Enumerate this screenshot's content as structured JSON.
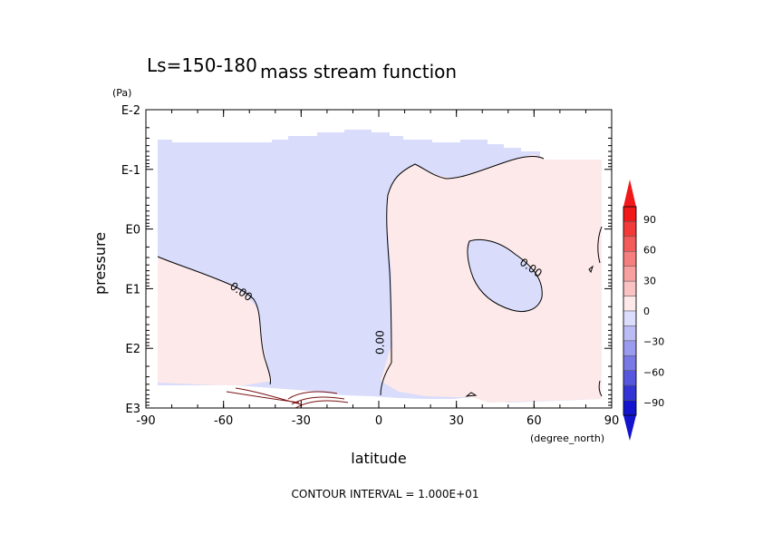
{
  "chart_data": {
    "type": "heatmap",
    "title": "mass stream function",
    "season_label": "Ls=150-180",
    "xlabel": "latitude",
    "x_unit": "(degree_north)",
    "ylabel": "pressure",
    "y_unit": "(Pa)",
    "x_ticks": [
      {
        "value": -90,
        "label": "-90"
      },
      {
        "value": -60,
        "label": "-60"
      },
      {
        "value": -30,
        "label": "-30"
      },
      {
        "value": 0,
        "label": "0"
      },
      {
        "value": 30,
        "label": "30"
      },
      {
        "value": 60,
        "label": "60"
      },
      {
        "value": 90,
        "label": "90"
      }
    ],
    "y_ticks": [
      {
        "exp": -2,
        "label": "E-2"
      },
      {
        "exp": -1,
        "label": "E-1"
      },
      {
        "exp": 0,
        "label": "E0"
      },
      {
        "exp": 1,
        "label": "E1"
      },
      {
        "exp": 2,
        "label": "E2"
      },
      {
        "exp": 3,
        "label": "E3"
      }
    ],
    "xlim": [
      -90,
      90
    ],
    "ylim_log10": [
      -2,
      3
    ],
    "y_scale": "log",
    "y_inverted": true,
    "contour_labels": [
      {
        "text": "0.00",
        "lat": -54,
        "log10p": 1.1
      },
      {
        "text": "0.00",
        "lat": 2,
        "log10p": 1.9
      },
      {
        "text": "0.00",
        "lat": 58,
        "log10p": 0.7
      }
    ],
    "colorbar": {
      "tick_values": [
        90,
        60,
        30,
        0,
        -30,
        -60,
        -90
      ],
      "tick_labels": [
        "90",
        "60",
        "30",
        "0",
        "−30",
        "−60",
        "−90"
      ],
      "colors_top_to_bottom": [
        "#f01818",
        "#f23a3a",
        "#f45c5c",
        "#f67e7e",
        "#f8a0a0",
        "#fac2c2",
        "#fde9e9",
        "#dcdcfc",
        "#bcbcf5",
        "#9a9aee",
        "#7878e6",
        "#5656de",
        "#3434d6",
        "#1414ce"
      ]
    },
    "regions": {
      "negative_color": "#d9dcfb",
      "positive_color": "#fde9e9"
    },
    "footnote": "CONTOUR INTERVAL = 1.000E+01"
  }
}
